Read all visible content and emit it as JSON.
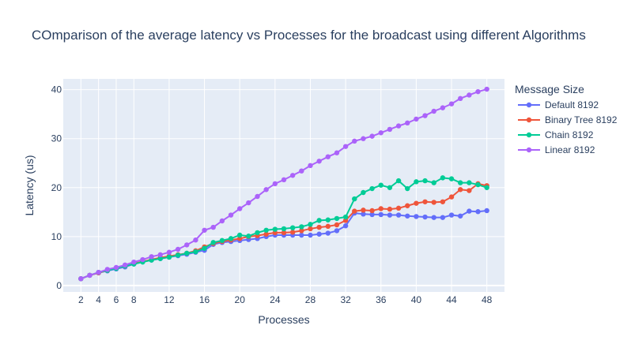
{
  "chart_data": {
    "type": "line",
    "title": "COmparison of the average latency vs Processes for the broadcast using different Algorithms",
    "xlabel": "Processes",
    "ylabel": "Latency (us)",
    "xlim": [
      0,
      50
    ],
    "ylim": [
      -1.3,
      42.2
    ],
    "xticks": [
      2,
      4,
      6,
      8,
      12,
      16,
      20,
      24,
      28,
      32,
      36,
      40,
      44,
      48
    ],
    "yticks": [
      0,
      10,
      20,
      30,
      40
    ],
    "grid": true,
    "legend_title": "Message Size",
    "legend_position": "right",
    "x": [
      2,
      3,
      4,
      5,
      6,
      7,
      8,
      9,
      10,
      11,
      12,
      13,
      14,
      15,
      16,
      17,
      18,
      19,
      20,
      21,
      22,
      23,
      24,
      25,
      26,
      27,
      28,
      29,
      30,
      31,
      32,
      33,
      34,
      35,
      36,
      37,
      38,
      39,
      40,
      41,
      42,
      43,
      44,
      45,
      46,
      47,
      48
    ],
    "series": [
      {
        "name": "Default 8192",
        "color": "#636efa",
        "values": [
          1.4,
          2.1,
          2.6,
          3.0,
          3.4,
          3.8,
          4.4,
          4.9,
          5.2,
          5.5,
          5.8,
          6.1,
          6.4,
          6.8,
          7.2,
          8.4,
          8.8,
          9.0,
          9.2,
          9.4,
          9.6,
          10.0,
          10.3,
          10.3,
          10.3,
          10.3,
          10.3,
          10.5,
          10.7,
          11.2,
          12.2,
          14.8,
          14.6,
          14.5,
          14.5,
          14.4,
          14.4,
          14.2,
          14.1,
          14.0,
          13.9,
          13.9,
          14.4,
          14.2,
          15.2,
          15.1,
          15.3
        ]
      },
      {
        "name": "Binary Tree 8192",
        "color": "#ef553b",
        "values": [
          1.4,
          2.1,
          2.6,
          3.1,
          3.6,
          4.0,
          4.5,
          4.9,
          5.3,
          5.7,
          6.0,
          6.3,
          6.6,
          7.1,
          7.9,
          8.6,
          9.0,
          9.3,
          9.6,
          10.0,
          10.2,
          10.5,
          10.8,
          10.8,
          10.9,
          11.2,
          11.6,
          11.9,
          12.1,
          12.4,
          13.3,
          15.2,
          15.4,
          15.3,
          15.7,
          15.6,
          15.8,
          16.3,
          16.8,
          17.1,
          17.0,
          17.1,
          18.1,
          19.6,
          19.4,
          20.8,
          20.4
        ]
      },
      {
        "name": "Chain 8192",
        "color": "#00cc96",
        "values": [
          1.4,
          2.1,
          2.7,
          3.1,
          3.5,
          4.0,
          4.4,
          4.8,
          5.2,
          5.5,
          5.8,
          6.2,
          6.6,
          6.9,
          7.6,
          8.8,
          9.2,
          9.6,
          10.3,
          10.1,
          10.8,
          11.3,
          11.5,
          11.6,
          11.8,
          12.0,
          12.5,
          13.3,
          13.4,
          13.7,
          14.0,
          17.7,
          19.0,
          19.8,
          20.5,
          20.0,
          21.4,
          19.8,
          21.2,
          21.4,
          21.0,
          22.0,
          21.8,
          21.0,
          21.0,
          20.6,
          20.0
        ]
      },
      {
        "name": "Linear 8192",
        "color": "#ab63fa",
        "values": [
          1.4,
          2.1,
          2.7,
          3.3,
          3.7,
          4.2,
          4.8,
          5.3,
          5.9,
          6.3,
          6.8,
          7.4,
          8.3,
          9.3,
          11.3,
          11.9,
          13.2,
          14.4,
          15.7,
          16.9,
          18.2,
          19.6,
          20.8,
          21.6,
          22.5,
          23.4,
          24.5,
          25.4,
          26.3,
          27.1,
          28.4,
          29.5,
          30.0,
          30.5,
          31.2,
          31.9,
          32.6,
          33.2,
          34.0,
          34.7,
          35.6,
          36.3,
          37.1,
          38.2,
          38.9,
          39.6,
          40.1
        ]
      }
    ]
  }
}
